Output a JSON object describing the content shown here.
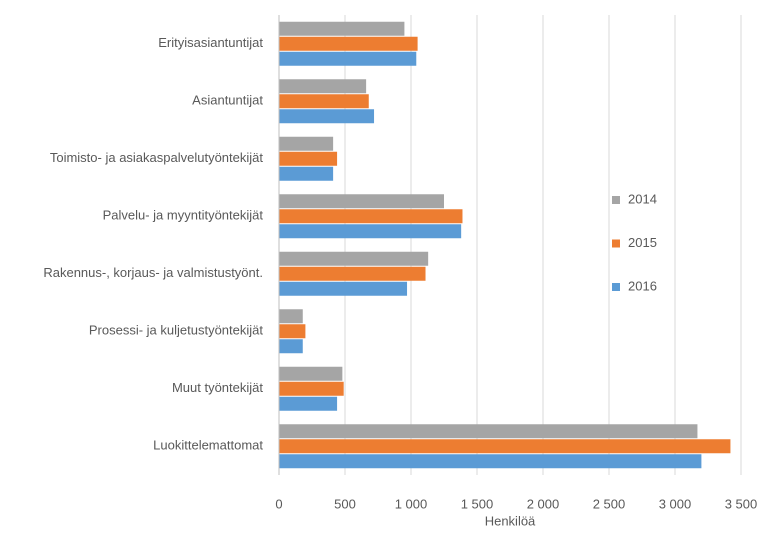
{
  "chart_data": {
    "type": "barh",
    "x_label": "Henkilöä",
    "categories": [
      "Erityisasiantuntijat",
      "Asiantuntijat",
      "Toimisto- ja asiakaspalvelutyöntekijät",
      "Palvelu- ja myyntityöntekijät",
      "Rakennus-, korjaus- ja valmistustyönt.",
      "Prosessi- ja kuljetustyöntekijät",
      "Muut työntekijät",
      "Luokittelemattomat"
    ],
    "series": [
      {
        "name": "2014",
        "color": "#a5a5a5",
        "values": [
          950,
          660,
          410,
          1250,
          1130,
          180,
          480,
          3170
        ]
      },
      {
        "name": "2015",
        "color": "#ed7d31",
        "values": [
          1050,
          680,
          440,
          1390,
          1110,
          200,
          490,
          3420
        ]
      },
      {
        "name": "2016",
        "color": "#5b9bd5",
        "values": [
          1040,
          720,
          410,
          1380,
          970,
          180,
          440,
          3200
        ]
      }
    ],
    "xlim": [
      0,
      3500
    ],
    "xticks": [
      0,
      500,
      {
        "value": 1000,
        "label": "1 000"
      },
      {
        "value": 1500,
        "label": "1 500"
      },
      {
        "value": 2000,
        "label": "2 000"
      },
      {
        "value": 2500,
        "label": "2 500"
      },
      {
        "value": 3000,
        "label": "3 000"
      },
      {
        "value": 3500,
        "label": "3 500"
      }
    ],
    "grid": true,
    "legend_position": "right"
  }
}
